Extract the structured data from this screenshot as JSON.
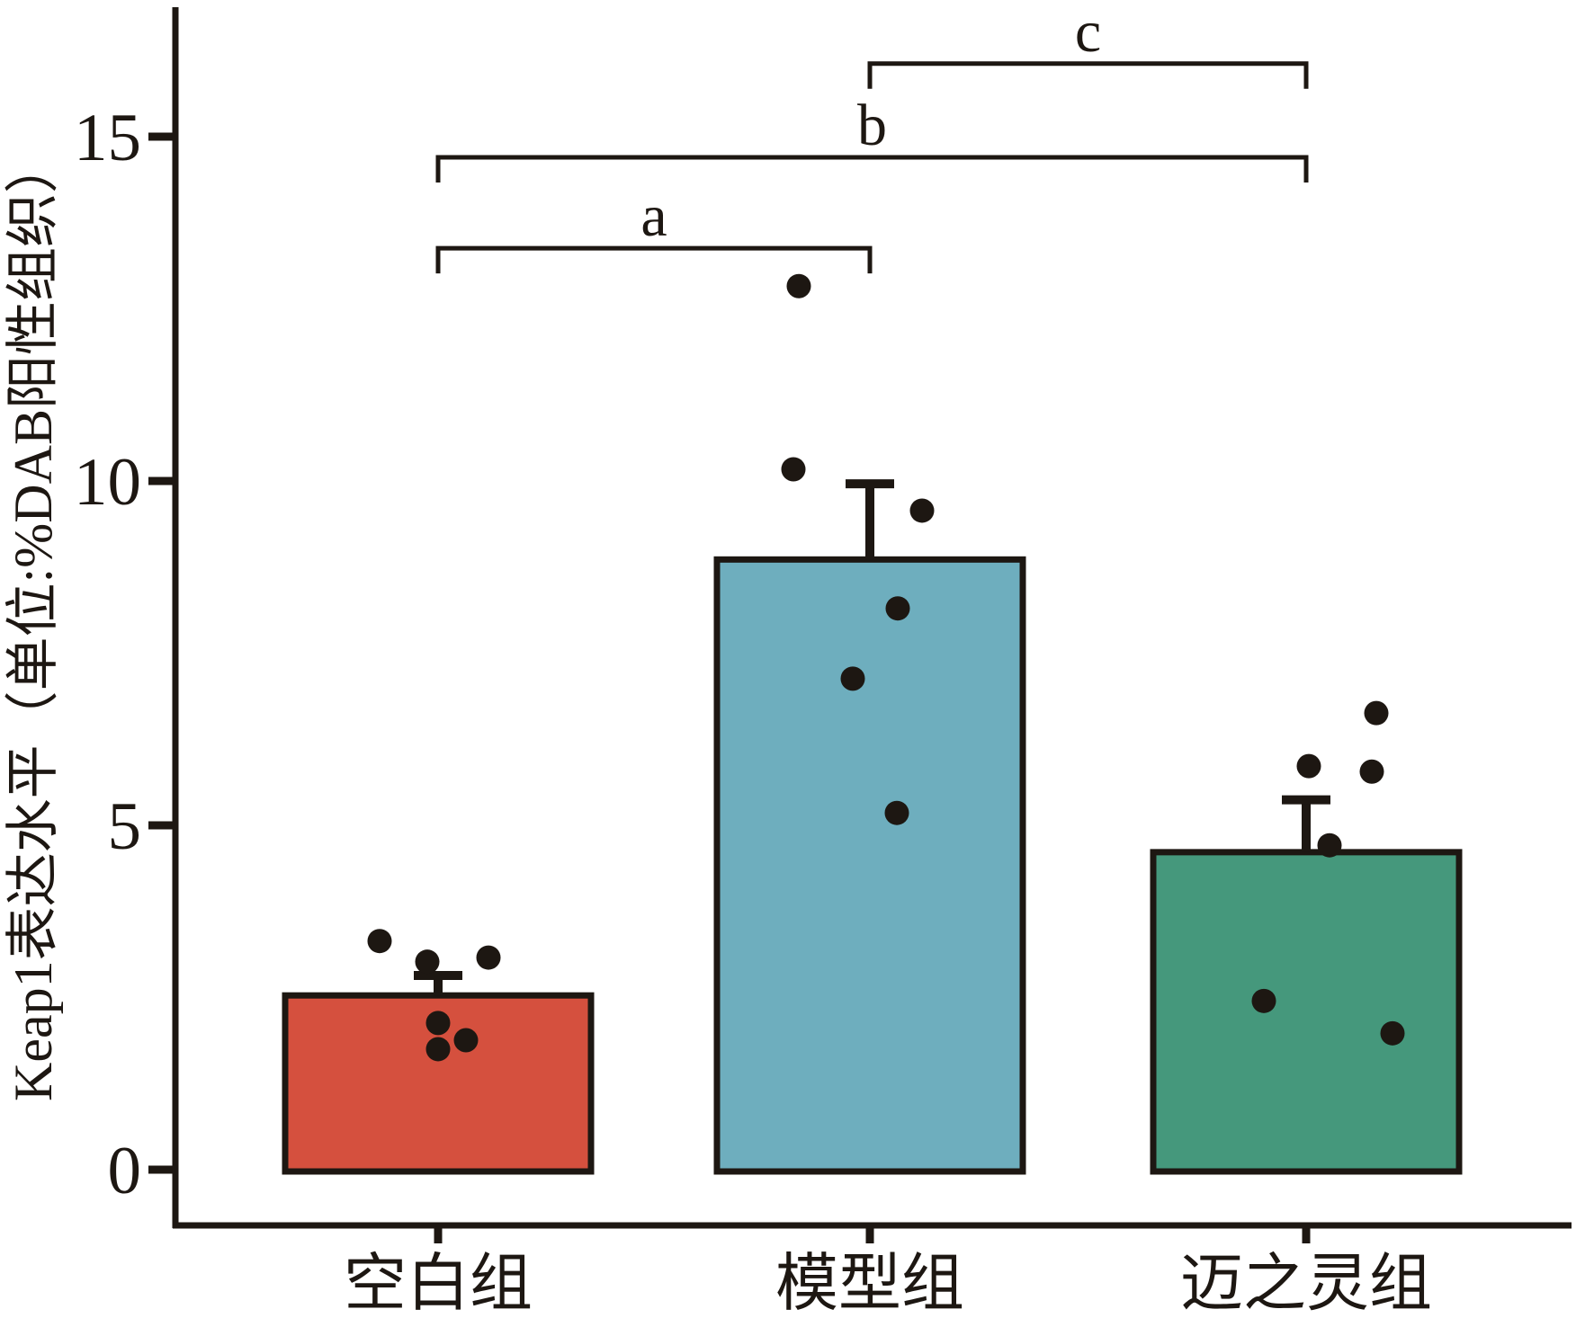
{
  "chart_data": {
    "type": "bar",
    "title": "",
    "xlabel": "",
    "ylabel": "Keap1表达水平（单位:%DAB阳性组织）",
    "yticks": [
      0,
      5,
      10,
      15
    ],
    "ylim": [
      0,
      16.9
    ],
    "grid": false,
    "legend": "none",
    "ink_color": "#1d1712",
    "background_color": "#ffffff",
    "categories": [
      "空白组",
      "模型组",
      "迈之灵组"
    ],
    "groups": [
      {
        "label": "空白组",
        "color": "#d5503e",
        "mean": 2.53,
        "err_upper": 0.29,
        "points": [
          {
            "dx": -65,
            "v": 3.32
          },
          {
            "dx": -12,
            "v": 3.02
          },
          {
            "dx": 56,
            "v": 3.08
          },
          {
            "dx": 0,
            "v": 2.13
          },
          {
            "dx": 31,
            "v": 1.88
          },
          {
            "dx": 0,
            "v": 1.75
          }
        ]
      },
      {
        "label": "模型组",
        "color": "#6eaebe",
        "mean": 8.86,
        "err_upper": 1.1,
        "points": [
          {
            "dx": -79,
            "v": 12.83
          },
          {
            "dx": -85,
            "v": 10.17
          },
          {
            "dx": 58,
            "v": 9.57
          },
          {
            "dx": 31,
            "v": 8.15
          },
          {
            "dx": -19,
            "v": 7.13
          },
          {
            "dx": 30,
            "v": 5.18
          }
        ]
      },
      {
        "label": "迈之灵组",
        "color": "#45987c",
        "mean": 4.61,
        "err_upper": 0.76,
        "points": [
          {
            "dx": 78,
            "v": 6.63
          },
          {
            "dx": 3,
            "v": 5.86
          },
          {
            "dx": 73,
            "v": 5.78
          },
          {
            "dx": 26,
            "v": 4.71
          },
          {
            "dx": -47,
            "v": 2.45
          },
          {
            "dx": 96,
            "v": 1.98
          }
        ]
      }
    ],
    "significance_brackets": [
      {
        "label": "a",
        "from": 0,
        "to": 1,
        "height": 13.38
      },
      {
        "label": "b",
        "from": 0,
        "to": 2,
        "height": 14.7
      },
      {
        "label": "c",
        "from": 1,
        "to": 2,
        "height": 16.06
      }
    ]
  }
}
